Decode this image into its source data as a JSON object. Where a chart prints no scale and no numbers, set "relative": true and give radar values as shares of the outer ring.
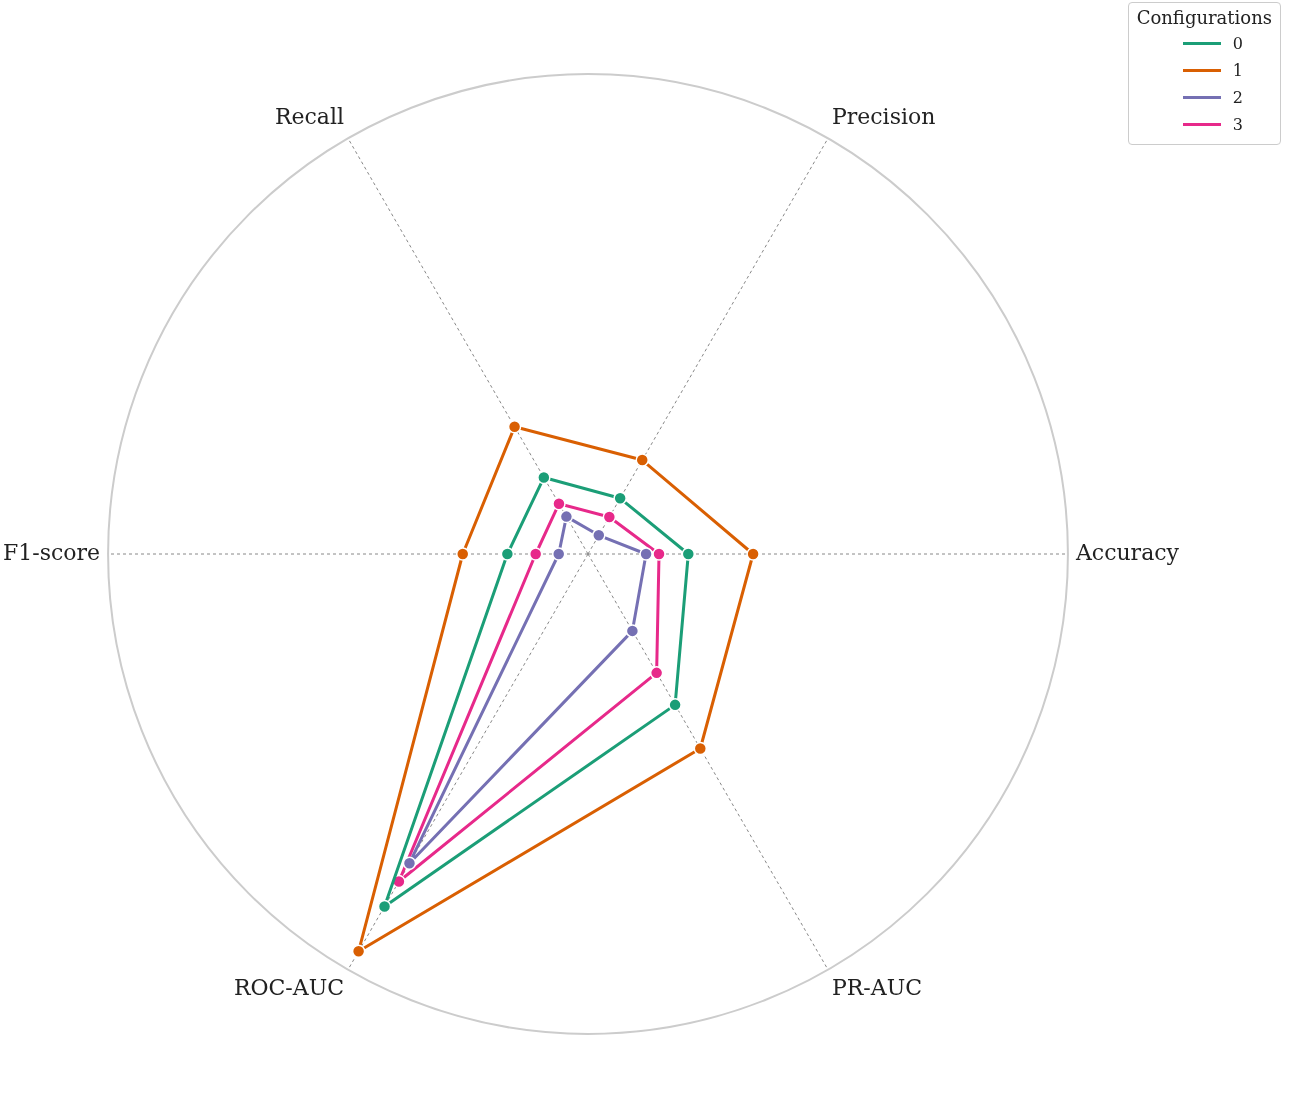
{
  "chart_data": {
    "type": "radar",
    "categories": [
      "Precision",
      "Accuracy",
      "PR-AUC",
      "ROC-AUC",
      "F1-score",
      "Recall"
    ],
    "series": [
      {
        "name": "0",
        "color": "#1b9e77",
        "values": [
          0.134,
          0.209,
          0.363,
          0.848,
          0.168,
          0.184
        ]
      },
      {
        "name": "1",
        "color": "#d95f02",
        "values": [
          0.226,
          0.344,
          0.468,
          0.956,
          0.261,
          0.306
        ]
      },
      {
        "name": "2",
        "color": "#7570b3",
        "values": [
          0.045,
          0.121,
          0.185,
          0.744,
          0.061,
          0.09
        ]
      },
      {
        "name": "3",
        "color": "#e7298a",
        "values": [
          0.089,
          0.148,
          0.286,
          0.788,
          0.109,
          0.121
        ]
      }
    ],
    "relative": true,
    "legend": "top right",
    "legend_title": "Configurations",
    "marker": "circle",
    "line_style": "solid",
    "grid": true
  }
}
